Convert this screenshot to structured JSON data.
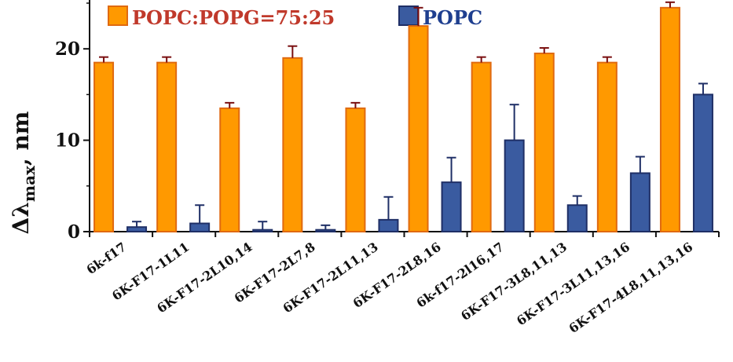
{
  "chart_data": {
    "type": "bar",
    "ylabel": "Δλmax, nm",
    "ylabel_main": "Δλ",
    "ylabel_sub": "max",
    "ylabel_tail": ", nm",
    "ylim": [
      0,
      25
    ],
    "yticks": [
      "0",
      "10",
      "20"
    ],
    "ytick_values": [
      0,
      10,
      20
    ],
    "legend_position": "top",
    "grid": false,
    "categories": [
      "6k-f17",
      "6K-F17-1L11",
      "6K-F17-2L10,14",
      "6K-F17-2L7,8",
      "6K-F17-2L11,13",
      "6K-F17-2L8,16",
      "6k-f17-2l16,17",
      "6K-F17-3L8,11,13",
      "6K-F17-3L11,13,16",
      "6K-F17-4L8,11,13,16"
    ],
    "series": [
      {
        "name": "POPC:POPG=75:25",
        "color": "#FF9900",
        "edge_color": "#E06A10",
        "text_color": "#C0392B",
        "errorbar_color": "#7A0F10",
        "values": [
          18.5,
          18.5,
          13.5,
          19.0,
          13.5,
          22.5,
          18.5,
          19.5,
          18.5,
          24.5
        ],
        "errors": [
          0.6,
          0.6,
          0.6,
          1.3,
          0.6,
          2.0,
          0.6,
          0.6,
          0.6,
          0.6
        ]
      },
      {
        "name": "POPC",
        "color": "#3A5BA0",
        "edge_color": "#1F2F66",
        "text_color": "#1F3F8F",
        "errorbar_color": "#1F2F66",
        "values": [
          0.5,
          0.9,
          0.2,
          0.2,
          1.3,
          5.4,
          10.0,
          2.9,
          6.4,
          15.0
        ],
        "errors": [
          0.6,
          2.0,
          0.9,
          0.5,
          2.5,
          2.7,
          3.9,
          1.0,
          1.8,
          1.2
        ]
      }
    ]
  }
}
